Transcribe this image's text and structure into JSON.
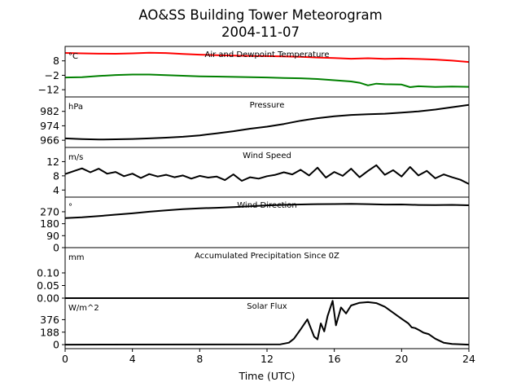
{
  "title": "AO&SS Building Tower Meteorogram",
  "subtitle": "2004-11-07",
  "xlabel": "Time (UTC)",
  "colors": {
    "temperature": "#ff0000",
    "dewpoint": "#008000",
    "default": "#000000"
  },
  "chart_data": [
    {
      "type": "line",
      "title": "Air and Dewpoint Temperature",
      "unit_label": "°C",
      "xlim": [
        0,
        24
      ],
      "ylim": [
        -17,
        18
      ],
      "yticks": [
        8,
        -2,
        -12
      ],
      "ytick_labels": [
        "8",
        "−2",
        "−12"
      ],
      "series": [
        {
          "color": "#ff0000",
          "x": [
            0,
            1,
            2,
            3,
            4,
            5,
            6,
            7,
            8,
            9,
            10,
            11,
            12,
            13,
            14,
            15,
            16,
            17,
            18,
            19,
            20,
            21,
            22,
            23,
            24
          ],
          "y": [
            13.5,
            13.2,
            13.0,
            12.9,
            13.2,
            13.6,
            13.4,
            12.8,
            12.3,
            11.9,
            11.6,
            11.4,
            11.3,
            11.1,
            10.8,
            10.3,
            9.9,
            9.5,
            9.8,
            9.4,
            9.6,
            9.3,
            8.9,
            8.2,
            7.2
          ]
        },
        {
          "color": "#008000",
          "x": [
            0,
            1,
            2,
            3,
            4,
            5,
            6,
            7,
            8,
            9,
            10,
            11,
            12,
            13,
            14,
            15,
            16,
            17,
            17.5,
            18,
            18.5,
            19,
            20,
            20.5,
            21,
            22,
            23,
            24
          ],
          "y": [
            -3.5,
            -3.3,
            -2.5,
            -1.8,
            -1.5,
            -1.5,
            -1.9,
            -2.3,
            -2.7,
            -2.9,
            -3.1,
            -3.3,
            -3.5,
            -3.9,
            -4.1,
            -4.6,
            -5.4,
            -6.3,
            -7.2,
            -9.0,
            -7.8,
            -8.2,
            -8.4,
            -10.2,
            -9.6,
            -10.1,
            -9.8,
            -10.0
          ]
        }
      ]
    },
    {
      "type": "line",
      "title": "Pressure",
      "unit_label": "hPa",
      "xlim": [
        0,
        24
      ],
      "ylim": [
        962,
        990
      ],
      "yticks": [
        982,
        974,
        966
      ],
      "ytick_labels": [
        "982",
        "974",
        "966"
      ],
      "series": [
        {
          "color": "#000000",
          "x": [
            0,
            1,
            2,
            3,
            4,
            5,
            6,
            7,
            8,
            9,
            10,
            11,
            12,
            13,
            14,
            15,
            16,
            17,
            18,
            19,
            20,
            21,
            22,
            23,
            24
          ],
          "y": [
            967.0,
            966.6,
            966.4,
            966.5,
            966.7,
            967.0,
            967.4,
            967.9,
            968.7,
            969.8,
            971.0,
            972.4,
            973.5,
            975.0,
            976.8,
            978.2,
            979.3,
            980.0,
            980.4,
            980.7,
            981.3,
            982.0,
            983.0,
            984.3,
            985.6
          ]
        }
      ]
    },
    {
      "type": "line",
      "title": "Wind Speed",
      "unit_label": "m/s",
      "xlim": [
        0,
        24
      ],
      "ylim": [
        2,
        16
      ],
      "yticks": [
        12,
        8,
        4
      ],
      "ytick_labels": [
        "12",
        "8",
        "4"
      ],
      "series": [
        {
          "color": "#000000",
          "x": [
            0,
            0.5,
            1,
            1.5,
            2,
            2.5,
            3,
            3.5,
            4,
            4.5,
            5,
            5.5,
            6,
            6.5,
            7,
            7.5,
            8,
            8.5,
            9,
            9.5,
            10,
            10.5,
            11,
            11.5,
            12,
            12.5,
            13,
            13.5,
            14,
            14.5,
            15,
            15.5,
            16,
            16.5,
            17,
            17.5,
            18,
            18.5,
            19,
            19.5,
            20,
            20.5,
            21,
            21.5,
            22,
            22.5,
            23,
            23.5,
            24
          ],
          "y": [
            8.5,
            9.3,
            10.1,
            9.0,
            10.0,
            8.6,
            9.1,
            7.9,
            8.6,
            7.4,
            8.5,
            7.8,
            8.3,
            7.6,
            8.1,
            7.2,
            8.0,
            7.5,
            7.8,
            6.8,
            8.4,
            6.6,
            7.6,
            7.2,
            7.9,
            8.3,
            9.0,
            8.4,
            9.7,
            8.1,
            10.3,
            7.5,
            9.1,
            8.0,
            10.0,
            7.6,
            9.4,
            11.0,
            8.3,
            9.6,
            7.8,
            10.5,
            8.1,
            9.4,
            7.3,
            8.4,
            7.6,
            6.9,
            5.7
          ]
        }
      ]
    },
    {
      "type": "line",
      "title": "Wind Direction",
      "unit_label": "°",
      "xlim": [
        0,
        24
      ],
      "ylim": [
        0,
        380
      ],
      "yticks": [
        270,
        180,
        90,
        0
      ],
      "ytick_labels": [
        "270",
        "180",
        "90",
        "0"
      ],
      "series": [
        {
          "color": "#000000",
          "x": [
            0,
            1,
            2,
            3,
            4,
            5,
            6,
            7,
            8,
            9,
            10,
            11,
            12,
            13,
            14,
            15,
            16,
            17,
            18,
            19,
            20,
            21,
            22,
            23,
            24
          ],
          "y": [
            222,
            228,
            237,
            248,
            258,
            270,
            281,
            290,
            296,
            300,
            305,
            311,
            318,
            322,
            325,
            327,
            328,
            330,
            327,
            324,
            325,
            321,
            320,
            322,
            319
          ]
        }
      ]
    },
    {
      "type": "line",
      "title": "Accumulated Precipitation Since 0Z",
      "unit_label": "mm",
      "xlim": [
        0,
        24
      ],
      "ylim": [
        0,
        0.2
      ],
      "yticks": [
        0.1,
        0.05,
        0.0
      ],
      "ytick_labels": [
        "0.10",
        "0.05",
        "0.00"
      ],
      "series": [
        {
          "color": "#000000",
          "x": [
            0,
            24
          ],
          "y": [
            0,
            0
          ]
        }
      ]
    },
    {
      "type": "line",
      "title": "Solar Flux",
      "unit_label": "W/m^2",
      "xlim": [
        0,
        24
      ],
      "xticks": [
        0,
        4,
        8,
        12,
        16,
        20,
        24
      ],
      "ylim": [
        -60,
        700
      ],
      "yticks": [
        376,
        188,
        0
      ],
      "ytick_labels": [
        "376",
        "188",
        "0"
      ],
      "series": [
        {
          "color": "#000000",
          "x": [
            0,
            12.8,
            13.3,
            13.6,
            14.0,
            14.4,
            14.8,
            15.0,
            15.2,
            15.4,
            15.6,
            15.9,
            16.1,
            16.4,
            16.7,
            17.0,
            17.5,
            18.0,
            18.5,
            19.0,
            19.5,
            20.0,
            20.4,
            20.6,
            20.8,
            21.0,
            21.3,
            21.6,
            22.0,
            22.5,
            23.0,
            24
          ],
          "y": [
            0,
            5,
            30,
            90,
            230,
            380,
            120,
            80,
            320,
            200,
            430,
            660,
            290,
            560,
            470,
            590,
            630,
            640,
            625,
            570,
            480,
            390,
            320,
            260,
            250,
            225,
            180,
            160,
            90,
            30,
            10,
            0
          ]
        }
      ]
    }
  ]
}
